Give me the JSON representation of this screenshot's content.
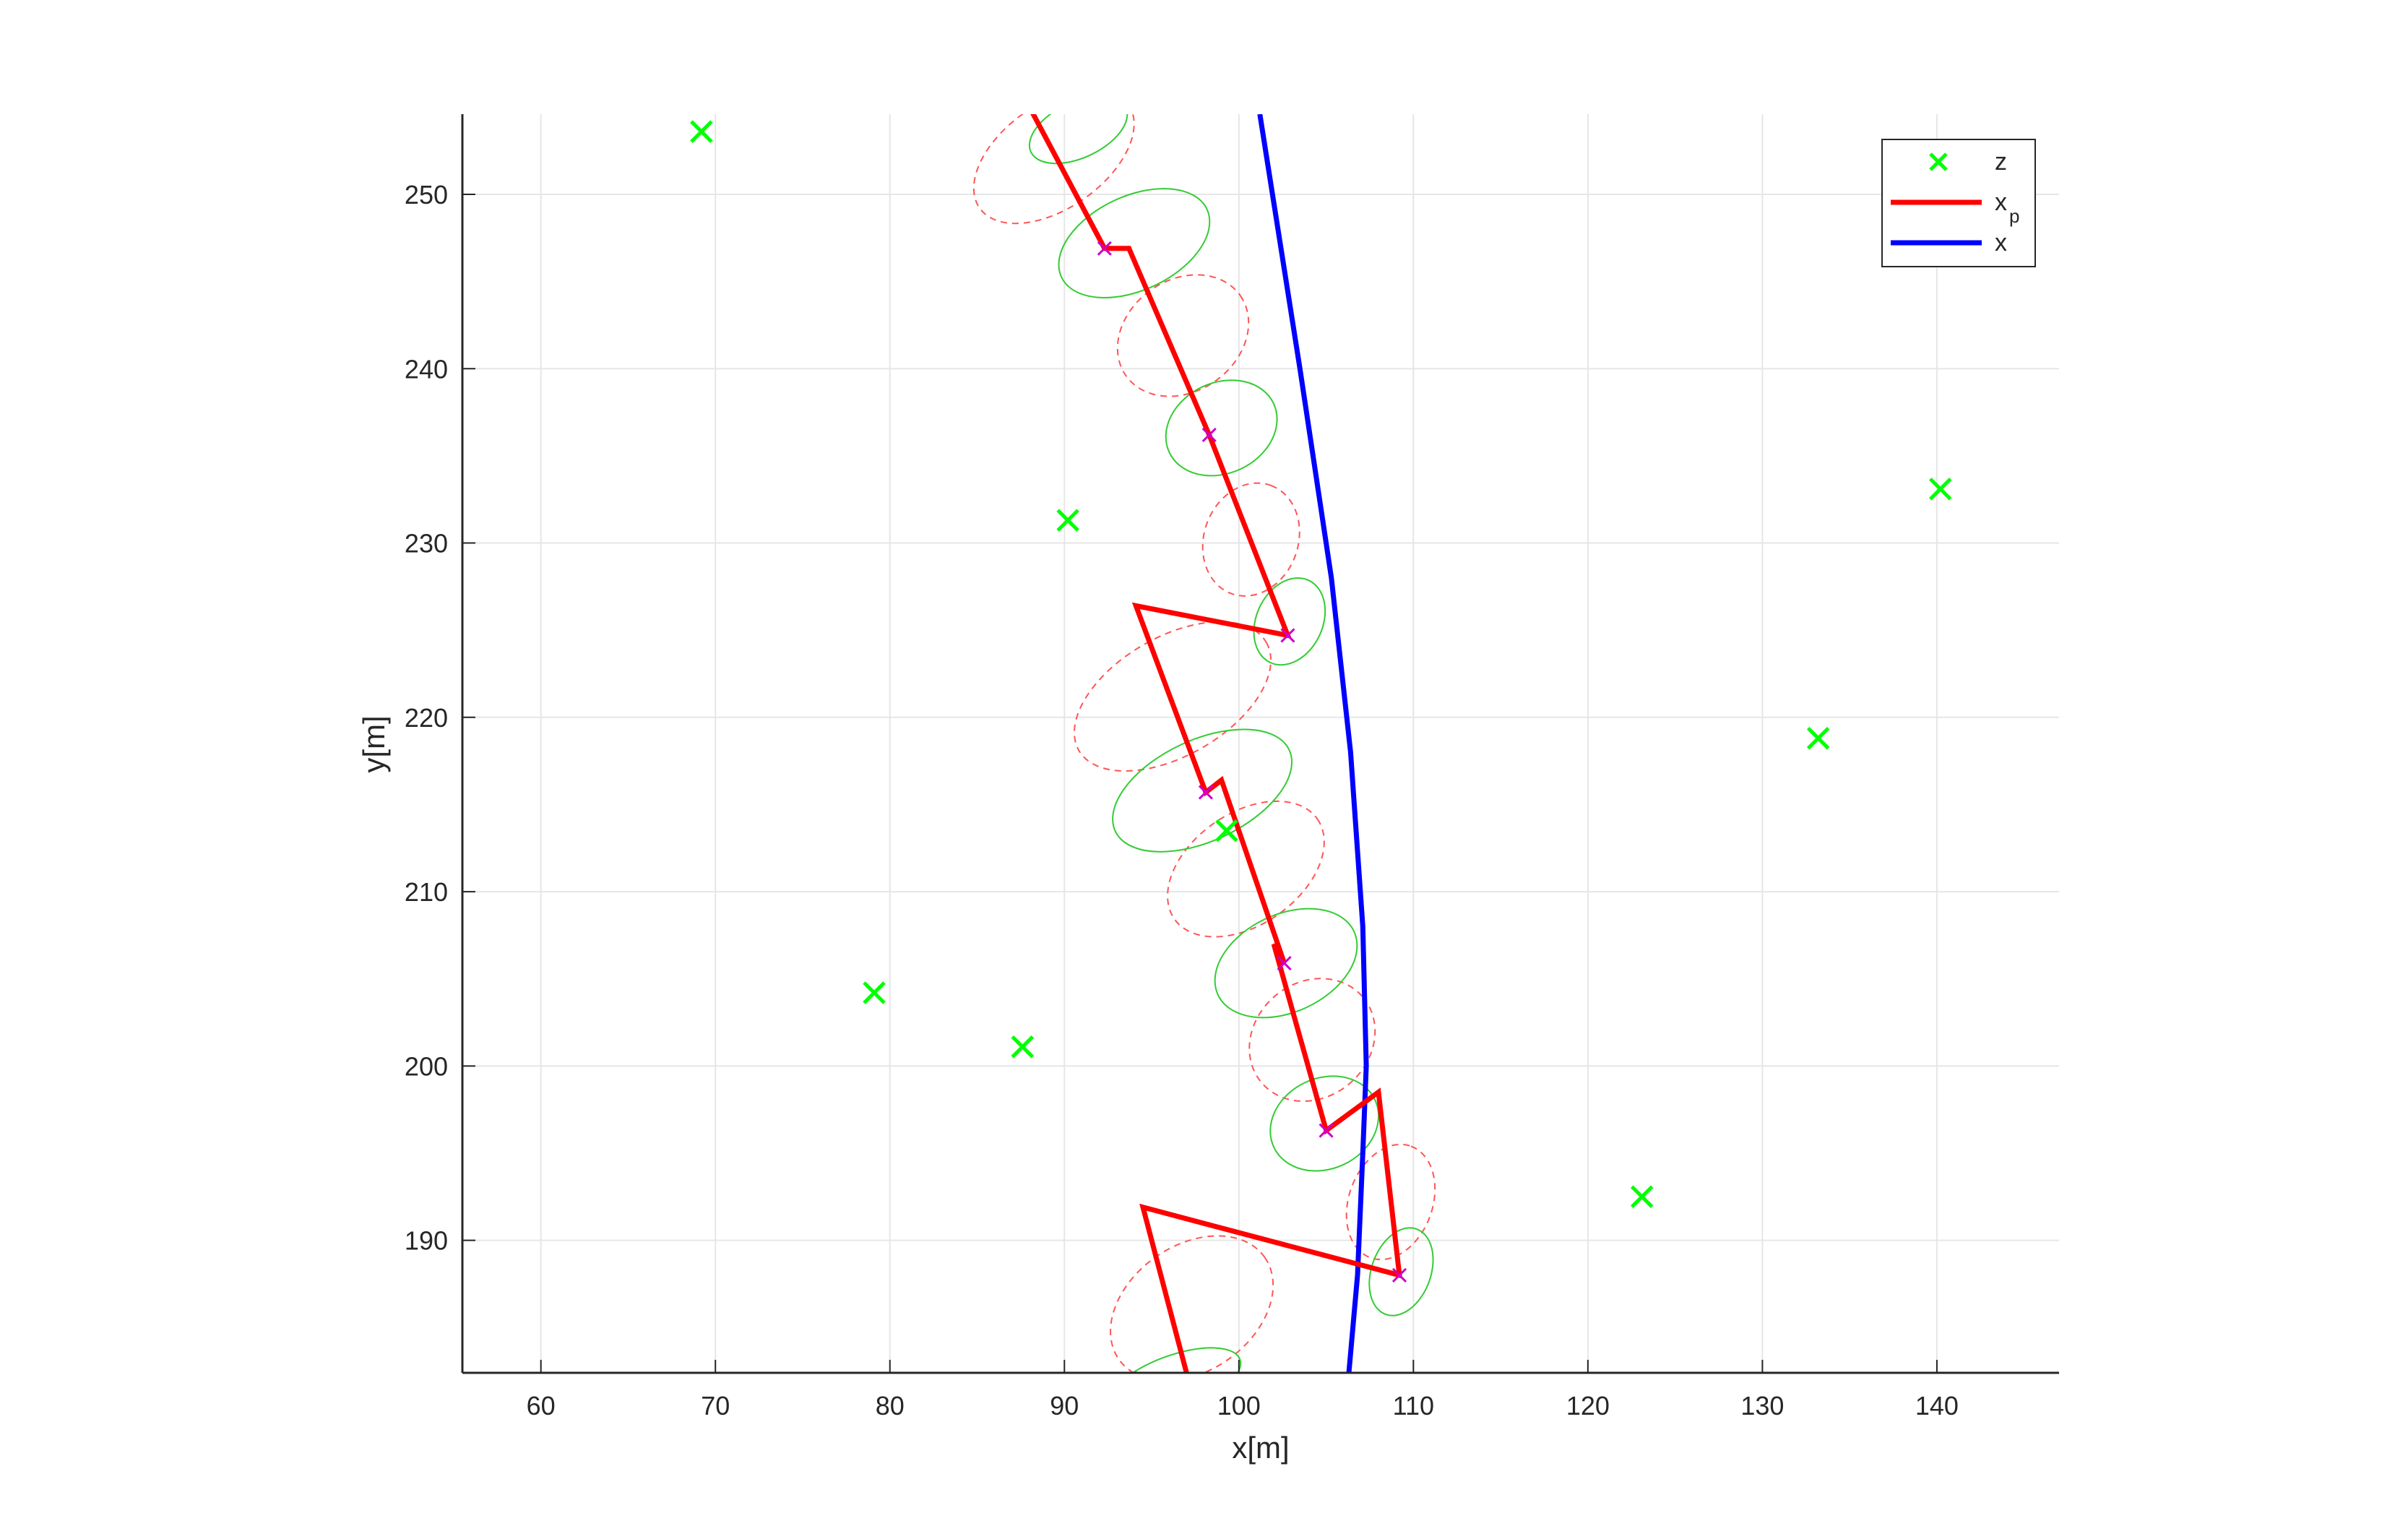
{
  "chart_data": {
    "type": "scatter",
    "xlabel": "x[m]",
    "ylabel": "y[m]",
    "xlim": [
      55.5,
      147
    ],
    "ylim": [
      182.4,
      254.6
    ],
    "grid": true,
    "legend_position": "top-right",
    "x_ticks": [
      "60",
      "70",
      "80",
      "90",
      "100",
      "110",
      "120",
      "130",
      "140"
    ],
    "y_ticks": [
      "190",
      "200",
      "210",
      "220",
      "230",
      "240",
      "250"
    ],
    "x_tick_values": [
      60,
      70,
      80,
      90,
      100,
      110,
      120,
      130,
      140
    ],
    "y_tick_values": [
      190,
      200,
      210,
      220,
      230,
      240,
      250
    ],
    "legend": [
      {
        "label": "z",
        "sub": "",
        "color": "#00ff00",
        "marker": "x"
      },
      {
        "label": "x",
        "sub": "p",
        "color": "#ff0000",
        "marker": "line"
      },
      {
        "label": "x",
        "sub": "",
        "color": "#0000ff",
        "marker": "line"
      }
    ],
    "colors": {
      "measurements": "#00ff00",
      "estimate": "#ff0000",
      "truth": "#0000ff",
      "update_ellipse": "#33cc33",
      "predict_ellipse": "#ff5555",
      "update_marker": "#cc00cc"
    },
    "series": [
      {
        "name": "z",
        "kind": "measurements",
        "x": [
          69.2,
          90.2,
          140.2,
          133.2,
          99.3,
          79.1,
          87.6,
          123.1
        ],
        "y": [
          253.6,
          231.3,
          233.1,
          218.8,
          213.5,
          204.2,
          201.1,
          192.5
        ]
      },
      {
        "name": "x_p",
        "kind": "estimate",
        "x": [
          88.0,
          92.3,
          93.7,
          98.3,
          102.8,
          94.1,
          98.1,
          99.0,
          102.6,
          102.0,
          105.0,
          108.0,
          109.2,
          94.5,
          97.0
        ],
        "y": [
          255.0,
          246.9,
          246.9,
          236.2,
          224.7,
          226.4,
          215.7,
          216.4,
          205.9,
          207.0,
          196.3,
          198.5,
          188.0,
          191.9,
          182.4
        ]
      },
      {
        "name": "x",
        "kind": "truth",
        "x": [
          101.2,
          103.5,
          105.3,
          106.4,
          107.1,
          107.3,
          107.1,
          106.8,
          106.3
        ],
        "y": [
          254.6,
          240.0,
          228.0,
          218.0,
          208.0,
          200.0,
          195.0,
          188.0,
          182.4
        ]
      }
    ],
    "update_points": {
      "x": [
        92.3,
        98.3,
        102.8,
        98.1,
        102.6,
        105.0,
        109.2
      ],
      "y": [
        246.9,
        236.2,
        224.7,
        215.7,
        205.9,
        196.3,
        188.0
      ]
    },
    "update_ellipses": [
      {
        "cx": 90.8,
        "cy": 253.7,
        "rx": 3.0,
        "ry": 1.6,
        "rot": 25
      },
      {
        "cx": 94.0,
        "cy": 247.2,
        "rx": 4.6,
        "ry": 2.7,
        "rot": 25
      },
      {
        "cx": 99.0,
        "cy": 236.6,
        "rx": 3.3,
        "ry": 2.6,
        "rot": 25
      },
      {
        "cx": 102.9,
        "cy": 225.5,
        "rx": 2.6,
        "ry": 1.9,
        "rot": 65
      },
      {
        "cx": 97.9,
        "cy": 215.8,
        "rx": 5.5,
        "ry": 2.9,
        "rot": 25
      },
      {
        "cx": 102.7,
        "cy": 205.9,
        "rx": 4.3,
        "ry": 2.8,
        "rot": 25
      },
      {
        "cx": 104.9,
        "cy": 196.7,
        "rx": 3.2,
        "ry": 2.6,
        "rot": 25
      },
      {
        "cx": 109.3,
        "cy": 188.2,
        "rx": 2.6,
        "ry": 1.7,
        "rot": 70
      },
      {
        "cx": 96.3,
        "cy": 181.8,
        "rx": 4.0,
        "ry": 1.6,
        "rot": 20
      }
    ],
    "predict_ellipses": [
      {
        "cx": 89.4,
        "cy": 252.2,
        "rx": 5.2,
        "ry": 3.0,
        "rot": 35
      },
      {
        "cx": 96.8,
        "cy": 241.9,
        "rx": 4.0,
        "ry": 3.2,
        "rot": 35
      },
      {
        "cx": 100.7,
        "cy": 230.2,
        "rx": 3.3,
        "ry": 2.7,
        "rot": 70
      },
      {
        "cx": 96.2,
        "cy": 221.2,
        "rx": 6.2,
        "ry": 3.4,
        "rot": 30
      },
      {
        "cx": 100.4,
        "cy": 211.3,
        "rx": 5.0,
        "ry": 3.2,
        "rot": 35
      },
      {
        "cx": 104.2,
        "cy": 201.5,
        "rx": 3.8,
        "ry": 3.3,
        "rot": 40
      },
      {
        "cx": 108.7,
        "cy": 192.2,
        "rx": 3.4,
        "ry": 2.4,
        "rot": 70
      },
      {
        "cx": 97.3,
        "cy": 186.1,
        "rx": 5.1,
        "ry": 3.6,
        "rot": 35
      }
    ]
  }
}
